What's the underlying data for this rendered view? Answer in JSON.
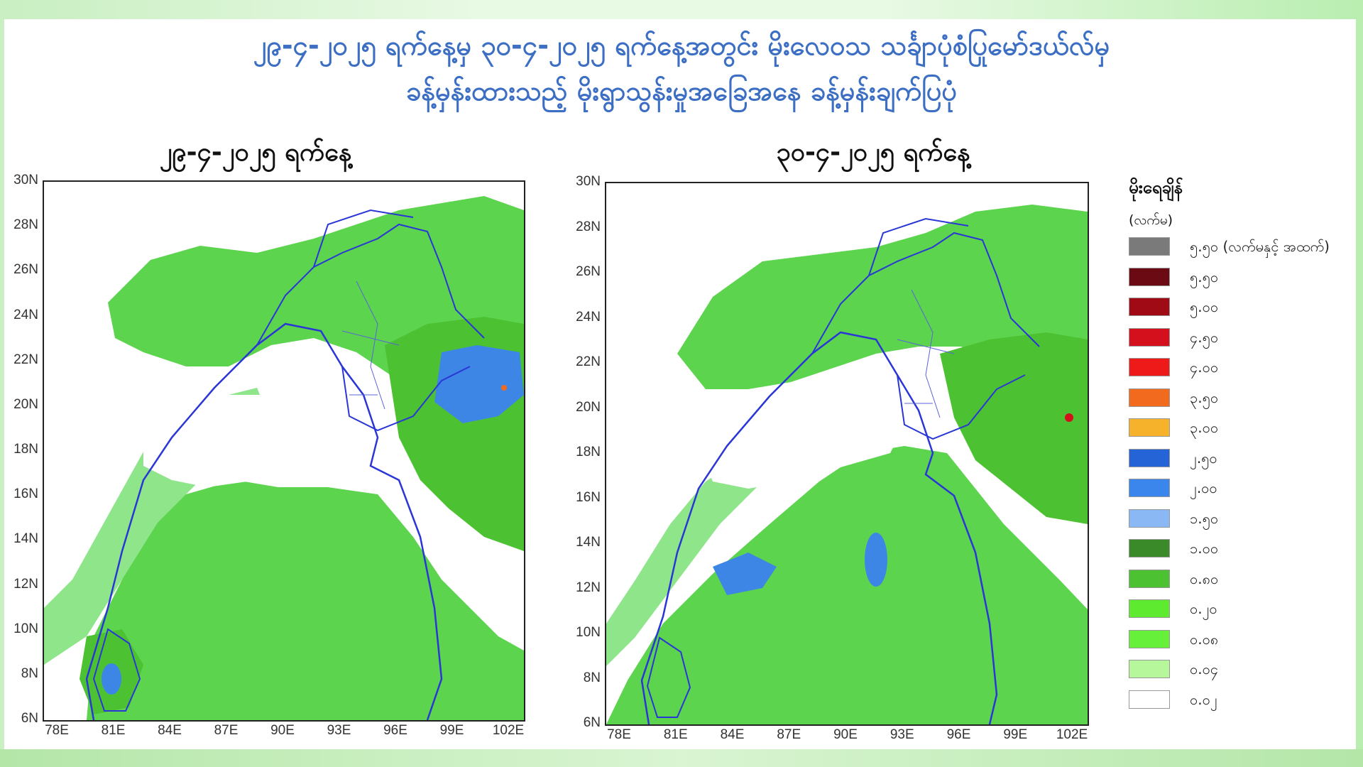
{
  "title_line1": "၂၉-၄-၂၀၂၅ ရက်နေ့မှ ၃၀-၄-၂၀၂၅ ရက်နေ့အတွင်း မိုးလေဝသ သင်္ချာပုံစံပြုမော်ဒယ်လ်မှ",
  "title_line2": "ခန့်မှန်းထားသည့် မိုးရွာသွန်းမှုအခြေအနေ ခန့်မှန်းချက်ပြပုံ",
  "maps": [
    {
      "date_label": "၂၉-၄-၂၀၂၅ ရက်နေ့"
    },
    {
      "date_label": "၃၀-၄-၂၀၂၅ ရက်နေ့"
    }
  ],
  "axes": {
    "lat_labels": [
      "30N",
      "28N",
      "26N",
      "24N",
      "22N",
      "20N",
      "18N",
      "16N",
      "14N",
      "12N",
      "10N",
      "8N",
      "6N"
    ],
    "lon_labels": [
      "78E",
      "81E",
      "84E",
      "87E",
      "90E",
      "93E",
      "96E",
      "99E",
      "102E"
    ]
  },
  "legend": {
    "title": "မိုးရေချိန်",
    "unit": "(လက်မ)",
    "items": [
      {
        "label": "၅.၅၀ (လက်မနှင့် အထက်)",
        "color": "#7a7a7a"
      },
      {
        "label": "၅.၅၀",
        "color": "#6b0a12"
      },
      {
        "label": "၅.၀၀",
        "color": "#a00a14"
      },
      {
        "label": "၄.၅၀",
        "color": "#d4101c"
      },
      {
        "label": "၄.၀၀",
        "color": "#ee1a1a"
      },
      {
        "label": "၃.၅၀",
        "color": "#f26a1e"
      },
      {
        "label": "၃.၀၀",
        "color": "#f5b22a"
      },
      {
        "label": "၂.၅၀",
        "color": "#2464d6"
      },
      {
        "label": "၂.၀၀",
        "color": "#3a86ec"
      },
      {
        "label": "၁.၅၀",
        "color": "#8ab8f4"
      },
      {
        "label": "၁.၀၀",
        "color": "#3a8a2a"
      },
      {
        "label": "၀.၈၀",
        "color": "#4cc232"
      },
      {
        "label": "၀.၂၀",
        "color": "#5eea2e"
      },
      {
        "label": "၀.၀၈",
        "color": "#66f03a"
      },
      {
        "label": "၀.၀၄",
        "color": "#b6f79c"
      },
      {
        "label": "၀.၀၂",
        "color": "#ffffff"
      }
    ]
  },
  "colors": {
    "title": "#3c6fc4",
    "boundary": "#2a36d6",
    "rain_light": "#8ee58a",
    "rain_mid": "#5cd44e",
    "rain_heavy": "#3e86e6"
  }
}
